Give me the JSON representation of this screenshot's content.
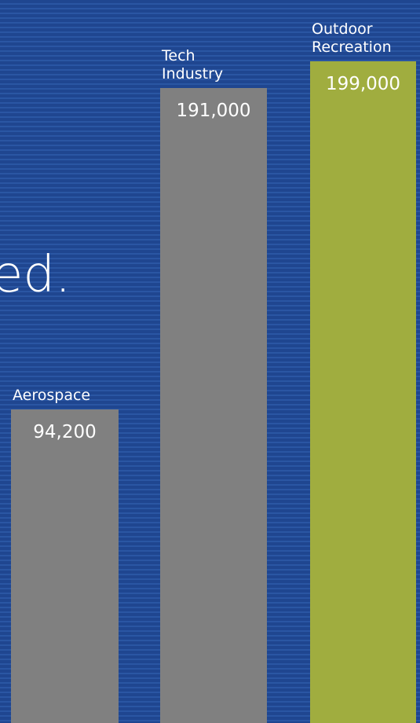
{
  "headline_fragment": "ed.",
  "colors": {
    "background": "#1f4690",
    "background_stripe": "#2a56a3",
    "bar_default": "#808080",
    "bar_highlight": "#a0ad3f",
    "text": "#ffffff"
  },
  "chart_data": {
    "type": "bar",
    "title": "",
    "xlabel": "",
    "ylabel": "",
    "ylim": [
      0,
      199000
    ],
    "categories": [
      "Aerospace",
      "Tech Industry",
      "Outdoor Recreation"
    ],
    "category_label_lines": [
      [
        "Aerospace"
      ],
      [
        "Tech",
        "Industry"
      ],
      [
        "Outdoor",
        "Recreation"
      ]
    ],
    "values": [
      94200,
      191000,
      199000
    ],
    "value_labels": [
      "94,200",
      "191,000",
      "199,000"
    ],
    "highlight": "Outdoor Recreation",
    "grid": false,
    "legend": "none"
  }
}
